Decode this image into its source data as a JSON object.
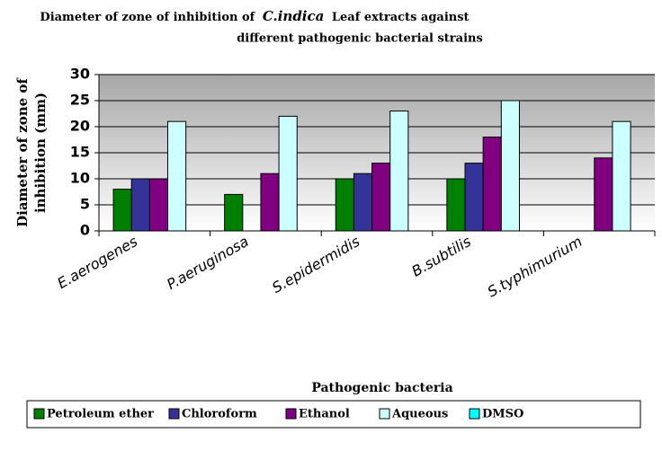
{
  "chart_data": {
    "type": "bar",
    "title": [
      "Diameter of zone of inhibition of",
      "C.indica",
      "Leaf extracts against",
      "different pathogenic bacterial strains"
    ],
    "y_label": [
      "Diameter of zone of",
      "inhibition (mm)"
    ],
    "x_label": "Pathogenic bacteria",
    "categories": [
      "E.aerogenes",
      "P.aeruginosa",
      "S.epidermidis",
      "B.subtilis",
      "S.typhimurium"
    ],
    "series": [
      {
        "name": "Petroleum ether",
        "color": "#008000",
        "values": [
          8,
          7,
          10,
          10,
          null
        ]
      },
      {
        "name": "Chloroform",
        "color": "#333399",
        "values": [
          10,
          null,
          11,
          13,
          null
        ]
      },
      {
        "name": "Ethanol",
        "color": "#800080",
        "values": [
          10,
          11,
          13,
          18,
          14
        ]
      },
      {
        "name": "Aqueous",
        "color": "#ccffff",
        "values": [
          21,
          22,
          23,
          25,
          21
        ]
      },
      {
        "name": "DMSO",
        "color": "#00ffff",
        "values": [
          null,
          null,
          null,
          null,
          null
        ]
      }
    ],
    "ylim": [
      0,
      30
    ],
    "yticks": [
      0,
      5,
      10,
      15,
      20,
      25,
      30
    ],
    "grid": true,
    "legend": "bottom"
  }
}
